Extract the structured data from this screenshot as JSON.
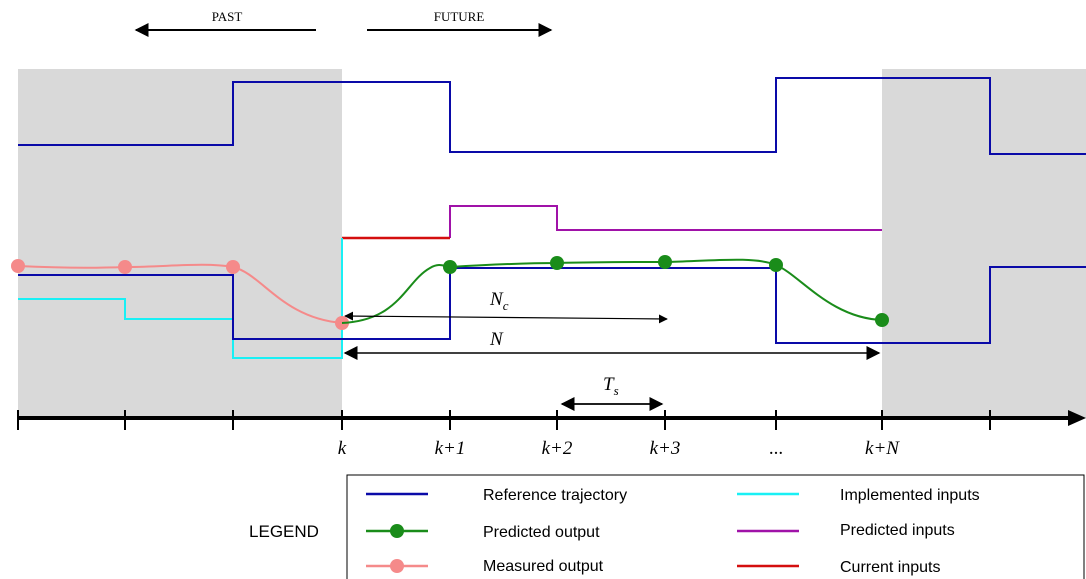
{
  "header": {
    "past_label": "PAST",
    "future_label": "FUTURE"
  },
  "axis": {
    "tick_labels": [
      "k",
      "k+1",
      "k+2",
      "k+3",
      "...",
      "k+N"
    ]
  },
  "annotations": {
    "nc": {
      "base": "N",
      "sub": "c"
    },
    "n": "N",
    "ts": {
      "base": "T",
      "sub": "s"
    }
  },
  "legend": {
    "title": "LEGEND",
    "items": [
      {
        "label": "Reference trajectory",
        "color": "#0a0aa8",
        "marker": false
      },
      {
        "label": "Predicted output",
        "color": "#1a8c1a",
        "marker": true
      },
      {
        "label": "Measured output",
        "color": "#f58a8a",
        "marker": true
      },
      {
        "label": "Implemented inputs",
        "color": "#19f0f5",
        "marker": false
      },
      {
        "label": "Predicted inputs",
        "color": "#a012a8",
        "marker": false
      },
      {
        "label": "Current inputs",
        "color": "#d40f0f",
        "marker": false
      }
    ]
  },
  "colors": {
    "shade": "#d9d9d9",
    "reference": "#0a0aa8",
    "predicted_output": "#1a8c1a",
    "measured_output": "#f58a8a",
    "implemented_inputs": "#19f0f5",
    "predicted_inputs": "#a012a8",
    "current_inputs": "#d40f0f",
    "axis": "#000000"
  }
}
